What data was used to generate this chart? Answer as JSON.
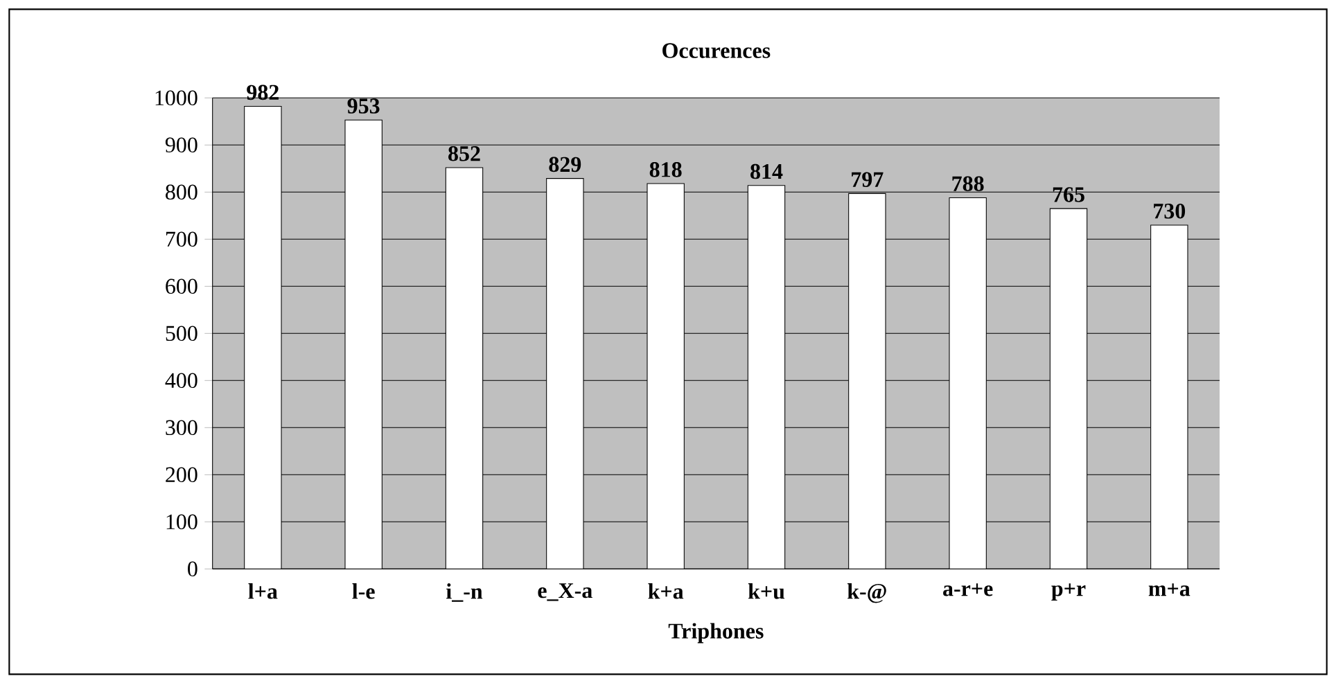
{
  "chart_data": {
    "type": "bar",
    "title": "Occurences",
    "xlabel": "Triphones",
    "categories": [
      "l+a",
      "l-e",
      "i_-n",
      "e_X-a",
      "k+a",
      "k+u",
      "k-@",
      "a-r+e",
      "p+r",
      "m+a"
    ],
    "values": [
      982,
      953,
      852,
      829,
      818,
      814,
      797,
      788,
      765,
      730
    ],
    "color": "#ffffff",
    "ylim": [
      0,
      1000
    ],
    "yticks": [
      0,
      100,
      200,
      300,
      400,
      500,
      600,
      700,
      800,
      900,
      1000
    ],
    "grid": "y",
    "data_labels": true
  }
}
